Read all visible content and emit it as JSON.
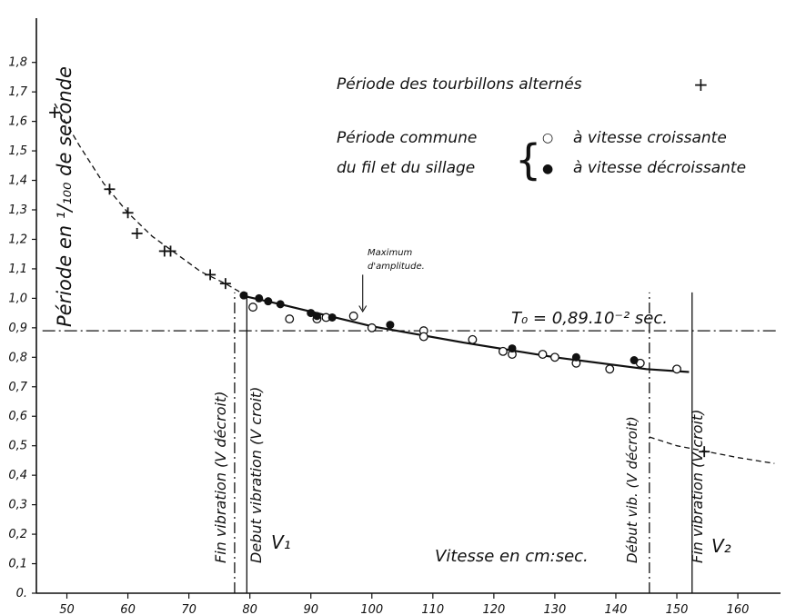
{
  "chart_data": {
    "type": "scatter",
    "xlabel": "Vitesse en cm:sec.",
    "ylabel": "Période  en ¹/₁₀₀ de  seconde",
    "xlim": [
      45,
      167
    ],
    "ylim": [
      0,
      1.95
    ],
    "x_ticks": [
      "50",
      "60",
      "70",
      "80",
      "90",
      "100",
      "110",
      "120",
      "130",
      "140",
      "150",
      "160"
    ],
    "x_tick_values": [
      50,
      60,
      70,
      80,
      90,
      100,
      110,
      120,
      130,
      140,
      150,
      160
    ],
    "y_ticks": [
      "0.",
      "0,1",
      "0,2",
      "0,3",
      "0,4",
      "0,5",
      "0,6",
      "0,7",
      "0,8",
      "0,9",
      "1,0",
      "1,1",
      "1,2",
      "1,3",
      "1,4",
      "1,5",
      "1,6",
      "1,7",
      "1,8"
    ],
    "y_tick_values": [
      0,
      0.1,
      0.2,
      0.3,
      0.4,
      0.5,
      0.6,
      0.7,
      0.8,
      0.9,
      1.0,
      1.1,
      1.2,
      1.3,
      1.4,
      1.5,
      1.6,
      1.7,
      1.8
    ],
    "legend": {
      "placement": "top-right",
      "cross_label": "Période des tourbillons alternés",
      "cross_symbol": "+",
      "common_line1": "Période commune",
      "common_line2": "du fil et du sillage",
      "brace": "{",
      "open_symbol": "○",
      "open_label": "à vitesse croissante",
      "filled_symbol": "●",
      "filled_label": "à vitesse décroissante"
    },
    "series": [
      {
        "name": "Période des tourbillons alternés",
        "marker": "cross",
        "x": [
          48,
          57,
          60,
          61.5,
          66,
          67,
          73.5,
          76,
          154.5
        ],
        "y": [
          1.63,
          1.37,
          1.29,
          1.22,
          1.16,
          1.16,
          1.08,
          1.05,
          0.48
        ]
      },
      {
        "name": "à vitesse croissante",
        "marker": "open",
        "x": [
          80.5,
          86.5,
          91,
          92.5,
          97,
          100,
          108.5,
          108.5,
          116.5,
          121.5,
          123,
          128,
          130,
          133.5,
          139,
          144,
          150
        ],
        "y": [
          0.97,
          0.93,
          0.93,
          0.935,
          0.94,
          0.9,
          0.89,
          0.87,
          0.86,
          0.82,
          0.81,
          0.81,
          0.8,
          0.78,
          0.76,
          0.78,
          0.76
        ]
      },
      {
        "name": "à vitesse décroissante",
        "marker": "filled",
        "x": [
          79,
          81.5,
          83,
          85,
          90,
          91,
          93.5,
          103,
          123,
          133.5,
          143
        ],
        "y": [
          1.01,
          1.0,
          0.99,
          0.98,
          0.95,
          0.94,
          0.935,
          0.91,
          0.83,
          0.8,
          0.79
        ]
      }
    ],
    "curves": {
      "dashed_left": {
        "x": [
          48,
          52,
          56,
          60,
          64,
          68,
          72,
          76,
          78.5
        ],
        "y": [
          1.66,
          1.52,
          1.39,
          1.29,
          1.21,
          1.15,
          1.09,
          1.05,
          1.02
        ]
      },
      "solid": {
        "x": [
          78.5,
          85,
          100,
          115,
          130,
          145,
          152
        ],
        "y": [
          1.01,
          0.98,
          0.905,
          0.85,
          0.8,
          0.76,
          0.75
        ]
      },
      "dashed_right": {
        "x": [
          145.5,
          150,
          155,
          160,
          166
        ],
        "y": [
          0.53,
          0.5,
          0.48,
          0.46,
          0.44
        ]
      }
    },
    "reference_line": {
      "y": 0.89,
      "label": "T₀ = 0,89.10⁻² sec."
    },
    "vertical_markers": [
      {
        "x": 77.5,
        "style": "dashdot",
        "label": "Fin vibration  (V décroit)"
      },
      {
        "x": 79.5,
        "style": "solid",
        "label": "Debut vibration  (V croit)"
      },
      {
        "x": 145.5,
        "style": "dashdot",
        "label": "Début vib. (V décroit)"
      },
      {
        "x": 152.5,
        "style": "solid",
        "label": "Fin vibration   (V croit)"
      }
    ],
    "v1_label": "V₁",
    "v2_label": "V₂",
    "annotation": {
      "line1": "Maximum",
      "line2": "d'amplitude.",
      "x": 98.5
    }
  }
}
